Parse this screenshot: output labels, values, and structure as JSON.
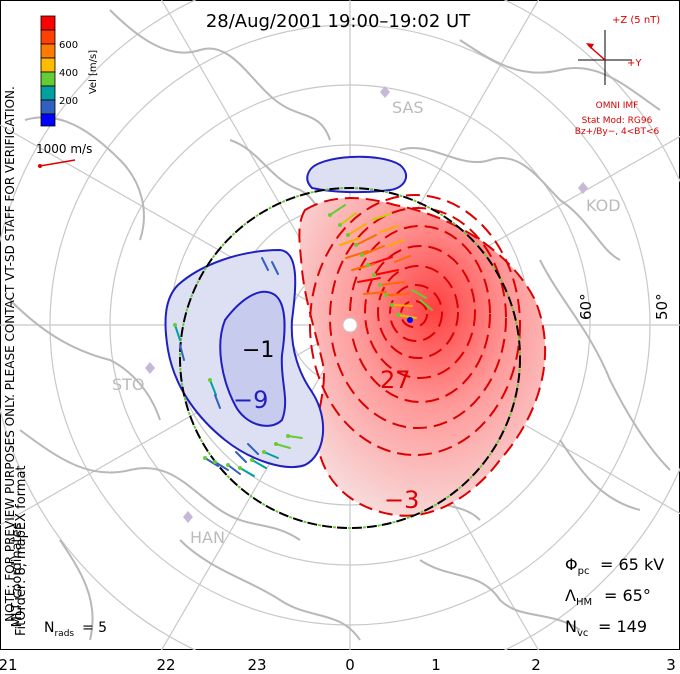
{
  "title": "28/Aug/2001  19:00–19:02  UT",
  "colorbar": {
    "label": "Vel [m/s]",
    "ticks": [
      "600",
      "400",
      "200"
    ],
    "colors": [
      "#ff0000",
      "#ff6a00",
      "#ffaa00",
      "#cccc00",
      "#66cc33",
      "#00a0a0",
      "#3060c0",
      "#0000ff"
    ]
  },
  "left_notes": {
    "coords": "MLT coordinates",
    "preview": "NOTE: FOR PREVIEW PURPOSES ONLY. PLEASE CONTACT VT-SD STAFF FOR VERIFICATION.",
    "fitorder": "FitOrder: 8, mapEX format"
  },
  "speed_ref": "1000 m/s",
  "imf": {
    "z_label": "+Z (5 nT)",
    "y_label": "+Y",
    "source": "OMNI IMF",
    "model_line1": "Stat Mod: RG96",
    "model_line2": "Bz+/By−, 4<BT<6",
    "color": "#dd0000"
  },
  "stations": [
    "SAS",
    "KOD",
    "STO",
    "HAN"
  ],
  "latitude_labels": [
    "60°",
    "50°"
  ],
  "contour_labels": [
    "−9",
    "27",
    "−3",
    "−1"
  ],
  "stats": {
    "phi_pc": "= 65 kV",
    "lambda_hm": "= 65°",
    "n_vc": "= 149",
    "n_rads": "= 5"
  },
  "mlt_axis": [
    "21",
    "22",
    "23",
    "0",
    "1",
    "2",
    "3"
  ]
}
